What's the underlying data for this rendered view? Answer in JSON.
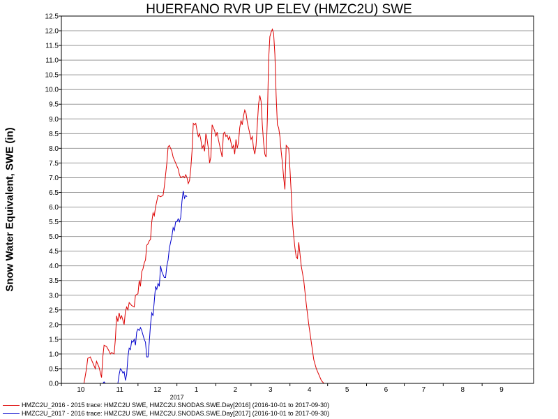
{
  "chart_data": {
    "type": "line",
    "title": "HUERFANO RVR UP ELEV (HMZC2U) SWE",
    "xlabel": "",
    "ylabel": "Snow Water Equivalent, SWE (in)",
    "ylim": [
      0,
      12.5
    ],
    "y_ticks": [
      "0.0",
      "0.5",
      "1.0",
      "1.5",
      "2.0",
      "2.5",
      "3.0",
      "3.5",
      "4.0",
      "4.5",
      "5.0",
      "5.5",
      "6.0",
      "6.5",
      "7.0",
      "7.5",
      "8.0",
      "8.5",
      "9.0",
      "9.5",
      "10.0",
      "10.5",
      "11.0",
      "11.5",
      "12.0",
      "12.5"
    ],
    "x_range": [
      "2016-10-01",
      "2017-10-12"
    ],
    "x_ticks": [
      {
        "date": "2016-10-01",
        "label": "10"
      },
      {
        "date": "2016-11-01",
        "label": "11"
      },
      {
        "date": "2016-12-01",
        "label": "12"
      },
      {
        "date": "2017-01-01",
        "label": "1"
      },
      {
        "date": "2017-02-01",
        "label": "2"
      },
      {
        "date": "2017-03-01",
        "label": "3"
      },
      {
        "date": "2017-04-01",
        "label": "4"
      },
      {
        "date": "2017-05-01",
        "label": "5"
      },
      {
        "date": "2017-06-01",
        "label": "6"
      },
      {
        "date": "2017-07-01",
        "label": "7"
      },
      {
        "date": "2017-08-01",
        "label": "8"
      },
      {
        "date": "2017-09-01",
        "label": "9"
      }
    ],
    "year_label": "2017",
    "grid": true,
    "legend_position": "bottom",
    "series": [
      {
        "name": "HMZC2U_2016 - 2015 trace: HMZC2U SWE, HMZC2U.SNODAS.SWE.Day[2016] (2016-10-01 to 2017-09-30)",
        "color": "#dd0000",
        "points": [
          [
            "2016-10-19",
            0.0
          ],
          [
            "2016-10-21",
            0.5
          ],
          [
            "2016-10-22",
            0.85
          ],
          [
            "2016-10-24",
            0.9
          ],
          [
            "2016-10-26",
            0.7
          ],
          [
            "2016-10-28",
            0.5
          ],
          [
            "2016-10-29",
            0.75
          ],
          [
            "2016-10-31",
            0.55
          ],
          [
            "2016-11-02",
            0.2
          ],
          [
            "2016-11-03",
            0.9
          ],
          [
            "2016-11-04",
            1.3
          ],
          [
            "2016-11-06",
            1.25
          ],
          [
            "2016-11-08",
            1.1
          ],
          [
            "2016-11-09",
            1.0
          ],
          [
            "2016-11-10",
            1.05
          ],
          [
            "2016-11-12",
            1.0
          ],
          [
            "2016-11-13",
            1.5
          ],
          [
            "2016-11-14",
            2.3
          ],
          [
            "2016-11-15",
            2.1
          ],
          [
            "2016-11-16",
            2.4
          ],
          [
            "2016-11-17",
            2.2
          ],
          [
            "2016-11-18",
            2.3
          ],
          [
            "2016-11-20",
            2.0
          ],
          [
            "2016-11-21",
            2.45
          ],
          [
            "2016-11-22",
            2.6
          ],
          [
            "2016-11-23",
            2.5
          ],
          [
            "2016-11-24",
            2.75
          ],
          [
            "2016-11-26",
            2.65
          ],
          [
            "2016-11-28",
            2.6
          ],
          [
            "2016-11-29",
            3.0
          ],
          [
            "2016-12-01",
            3.05
          ],
          [
            "2016-12-02",
            3.5
          ],
          [
            "2016-12-03",
            3.3
          ],
          [
            "2016-12-04",
            3.8
          ],
          [
            "2016-12-05",
            3.9
          ],
          [
            "2016-12-06",
            4.1
          ],
          [
            "2016-12-07",
            4.2
          ],
          [
            "2016-12-08",
            4.7
          ],
          [
            "2016-12-09",
            4.75
          ],
          [
            "2016-12-10",
            4.85
          ],
          [
            "2016-12-11",
            4.9
          ],
          [
            "2016-12-12",
            5.5
          ],
          [
            "2016-12-13",
            5.8
          ],
          [
            "2016-12-14",
            5.7
          ],
          [
            "2016-12-15",
            6.0
          ],
          [
            "2016-12-16",
            6.2
          ],
          [
            "2016-12-17",
            6.4
          ],
          [
            "2016-12-19",
            6.35
          ],
          [
            "2016-12-21",
            6.4
          ],
          [
            "2016-12-22",
            6.7
          ],
          [
            "2016-12-23",
            7.1
          ],
          [
            "2016-12-24",
            7.5
          ],
          [
            "2016-12-25",
            8.05
          ],
          [
            "2016-12-26",
            8.1
          ],
          [
            "2016-12-27",
            8.0
          ],
          [
            "2016-12-28",
            7.9
          ],
          [
            "2016-12-29",
            7.7
          ],
          [
            "2016-12-30",
            7.6
          ],
          [
            "2016-12-31",
            7.5
          ],
          [
            "2017-01-02",
            7.3
          ],
          [
            "2017-01-03",
            7.1
          ],
          [
            "2017-01-04",
            7.0
          ],
          [
            "2017-01-06",
            7.05
          ],
          [
            "2017-01-07",
            7.0
          ],
          [
            "2017-01-08",
            7.1
          ],
          [
            "2017-01-09",
            7.0
          ],
          [
            "2017-01-10",
            6.8
          ],
          [
            "2017-01-11",
            6.9
          ],
          [
            "2017-01-12",
            7.3
          ],
          [
            "2017-01-13",
            7.9
          ],
          [
            "2017-01-14",
            8.85
          ],
          [
            "2017-01-15",
            8.8
          ],
          [
            "2017-01-16",
            8.85
          ],
          [
            "2017-01-17",
            8.6
          ],
          [
            "2017-01-18",
            8.4
          ],
          [
            "2017-01-19",
            8.5
          ],
          [
            "2017-01-20",
            8.3
          ],
          [
            "2017-01-21",
            8.0
          ],
          [
            "2017-01-22",
            8.1
          ],
          [
            "2017-01-23",
            7.9
          ],
          [
            "2017-01-24",
            8.5
          ],
          [
            "2017-01-25",
            8.3
          ],
          [
            "2017-01-26",
            8.0
          ],
          [
            "2017-01-27",
            7.5
          ],
          [
            "2017-01-28",
            7.7
          ],
          [
            "2017-01-29",
            8.8
          ],
          [
            "2017-01-30",
            8.7
          ],
          [
            "2017-01-31",
            8.6
          ],
          [
            "2017-02-01",
            8.4
          ],
          [
            "2017-02-02",
            8.55
          ],
          [
            "2017-02-03",
            8.3
          ],
          [
            "2017-02-04",
            8.1
          ],
          [
            "2017-02-05",
            7.9
          ],
          [
            "2017-02-06",
            7.7
          ],
          [
            "2017-02-07",
            8.5
          ],
          [
            "2017-02-08",
            8.55
          ],
          [
            "2017-02-09",
            8.4
          ],
          [
            "2017-02-10",
            8.45
          ],
          [
            "2017-02-11",
            8.3
          ],
          [
            "2017-02-12",
            8.4
          ],
          [
            "2017-02-13",
            8.2
          ],
          [
            "2017-02-14",
            8.0
          ],
          [
            "2017-02-15",
            8.1
          ],
          [
            "2017-02-16",
            7.8
          ],
          [
            "2017-02-17",
            8.3
          ],
          [
            "2017-02-18",
            8.0
          ],
          [
            "2017-02-19",
            8.2
          ],
          [
            "2017-02-20",
            8.7
          ],
          [
            "2017-02-21",
            8.95
          ],
          [
            "2017-02-22",
            8.8
          ],
          [
            "2017-02-23",
            9.1
          ],
          [
            "2017-02-24",
            9.3
          ],
          [
            "2017-02-25",
            9.2
          ],
          [
            "2017-02-26",
            8.9
          ],
          [
            "2017-02-27",
            8.7
          ],
          [
            "2017-02-28",
            8.5
          ],
          [
            "2017-03-01",
            8.3
          ],
          [
            "2017-03-02",
            8.4
          ],
          [
            "2017-03-03",
            8.0
          ],
          [
            "2017-03-04",
            7.8
          ],
          [
            "2017-03-05",
            8.1
          ],
          [
            "2017-03-06",
            8.8
          ],
          [
            "2017-03-07",
            9.5
          ],
          [
            "2017-03-08",
            9.8
          ],
          [
            "2017-03-09",
            9.6
          ],
          [
            "2017-03-10",
            8.8
          ],
          [
            "2017-03-11",
            8.2
          ],
          [
            "2017-03-12",
            7.8
          ],
          [
            "2017-03-13",
            7.7
          ],
          [
            "2017-03-14",
            9.0
          ],
          [
            "2017-03-15",
            11.0
          ],
          [
            "2017-03-16",
            11.8
          ],
          [
            "2017-03-17",
            11.95
          ],
          [
            "2017-03-18",
            12.05
          ],
          [
            "2017-03-19",
            11.9
          ],
          [
            "2017-03-20",
            11.2
          ],
          [
            "2017-03-21",
            9.8
          ],
          [
            "2017-03-22",
            8.8
          ],
          [
            "2017-03-23",
            8.7
          ],
          [
            "2017-03-24",
            8.4
          ],
          [
            "2017-03-25",
            7.9
          ],
          [
            "2017-03-26",
            7.5
          ],
          [
            "2017-03-27",
            7.0
          ],
          [
            "2017-03-28",
            6.6
          ],
          [
            "2017-03-29",
            8.1
          ],
          [
            "2017-03-30",
            8.05
          ],
          [
            "2017-03-31",
            8.0
          ],
          [
            "2017-04-01",
            7.3
          ],
          [
            "2017-04-02",
            6.5
          ],
          [
            "2017-04-03",
            5.5
          ],
          [
            "2017-04-04",
            5.0
          ],
          [
            "2017-04-05",
            4.6
          ],
          [
            "2017-04-06",
            4.3
          ],
          [
            "2017-04-07",
            4.25
          ],
          [
            "2017-04-08",
            4.8
          ],
          [
            "2017-04-09",
            4.4
          ],
          [
            "2017-04-10",
            4.0
          ],
          [
            "2017-04-12",
            3.5
          ],
          [
            "2017-04-14",
            2.7
          ],
          [
            "2017-04-16",
            2.0
          ],
          [
            "2017-04-18",
            1.4
          ],
          [
            "2017-04-20",
            0.8
          ],
          [
            "2017-04-22",
            0.5
          ],
          [
            "2017-04-24",
            0.3
          ],
          [
            "2017-04-26",
            0.1
          ],
          [
            "2017-04-28",
            0.0
          ]
        ]
      },
      {
        "name": "HMZC2U_2017 - 2016 trace: HMZC2U SWE, HMZC2U.SNODAS.SWE.Day[2017] (2016-10-01 to 2017-09-30)",
        "color": "#0000cc",
        "points": [
          [
            "2016-11-03",
            0.0
          ],
          [
            "2016-11-04",
            0.05
          ],
          [
            "2016-11-05",
            0.0
          ],
          [
            "2016-11-15",
            0.0
          ],
          [
            "2016-11-16",
            0.3
          ],
          [
            "2016-11-17",
            0.5
          ],
          [
            "2016-11-18",
            0.45
          ],
          [
            "2016-11-19",
            0.35
          ],
          [
            "2016-11-20",
            0.4
          ],
          [
            "2016-11-21",
            0.1
          ],
          [
            "2016-11-22",
            0.3
          ],
          [
            "2016-11-23",
            0.9
          ],
          [
            "2016-11-24",
            1.2
          ],
          [
            "2016-11-25",
            1.15
          ],
          [
            "2016-11-26",
            1.45
          ],
          [
            "2016-11-27",
            1.4
          ],
          [
            "2016-11-28",
            1.5
          ],
          [
            "2016-11-29",
            1.3
          ],
          [
            "2016-11-30",
            1.75
          ],
          [
            "2016-12-01",
            1.85
          ],
          [
            "2016-12-02",
            1.8
          ],
          [
            "2016-12-03",
            1.9
          ],
          [
            "2016-12-04",
            1.8
          ],
          [
            "2016-12-05",
            1.65
          ],
          [
            "2016-12-06",
            1.5
          ],
          [
            "2016-12-07",
            1.4
          ],
          [
            "2016-12-08",
            0.9
          ],
          [
            "2016-12-09",
            0.9
          ],
          [
            "2016-12-10",
            1.4
          ],
          [
            "2016-12-11",
            2.0
          ],
          [
            "2016-12-12",
            2.4
          ],
          [
            "2016-12-13",
            2.3
          ],
          [
            "2016-12-14",
            2.8
          ],
          [
            "2016-12-15",
            3.3
          ],
          [
            "2016-12-16",
            3.2
          ],
          [
            "2016-12-17",
            3.4
          ],
          [
            "2016-12-18",
            3.3
          ],
          [
            "2016-12-19",
            4.0
          ],
          [
            "2016-12-20",
            3.8
          ],
          [
            "2016-12-21",
            3.7
          ],
          [
            "2016-12-22",
            3.6
          ],
          [
            "2016-12-23",
            3.6
          ],
          [
            "2016-12-24",
            4.0
          ],
          [
            "2016-12-25",
            4.2
          ],
          [
            "2016-12-26",
            4.6
          ],
          [
            "2016-12-27",
            4.8
          ],
          [
            "2016-12-28",
            5.0
          ],
          [
            "2016-12-29",
            5.3
          ],
          [
            "2016-12-30",
            5.2
          ],
          [
            "2016-12-31",
            5.5
          ],
          [
            "2017-01-01",
            5.5
          ],
          [
            "2017-01-02",
            5.6
          ],
          [
            "2017-01-03",
            5.5
          ],
          [
            "2017-01-04",
            5.65
          ],
          [
            "2017-01-05",
            6.2
          ],
          [
            "2017-01-06",
            6.55
          ],
          [
            "2017-01-07",
            6.3
          ],
          [
            "2017-01-08",
            6.4
          ],
          [
            "2017-01-09",
            6.35
          ]
        ]
      }
    ]
  }
}
